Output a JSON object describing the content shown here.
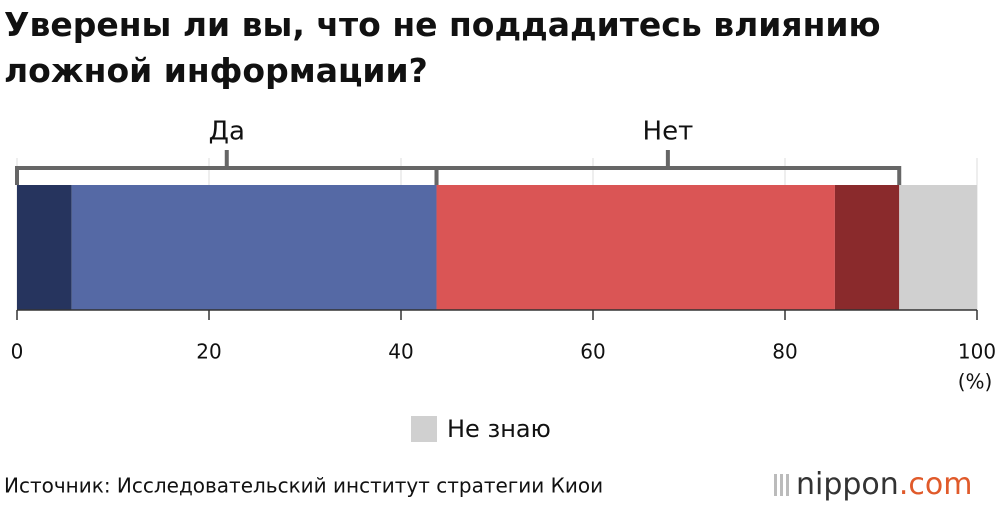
{
  "chart_data": {
    "type": "stacked-bar-horizontal",
    "title": "Уверены ли вы, что не поддадитесь влиянию ложной информации?",
    "series": [
      {
        "color": "#26345e",
        "values": [
          5.7
        ]
      },
      {
        "color": "#5569a5",
        "values": [
          38.0
        ]
      },
      {
        "color": "#da5555",
        "values": [
          41.5
        ]
      },
      {
        "color": "#8a2a2c",
        "values": [
          6.7
        ]
      },
      {
        "name": "Не знаю",
        "color": "#d0d0d0",
        "values": [
          8.1
        ]
      }
    ],
    "brackets": [
      {
        "label": "Да",
        "series": [
          0,
          1
        ]
      },
      {
        "label": "Нет",
        "series": [
          2,
          3
        ]
      }
    ],
    "xlim": [
      0,
      100
    ],
    "xticks": [
      0,
      20,
      40,
      60,
      80,
      100
    ],
    "x_unit": "(%)",
    "grid": true,
    "source": "Источник: Исследовательский институт стратегии Киои",
    "brand": {
      "name": "nippon",
      "suffix": ".com"
    }
  }
}
